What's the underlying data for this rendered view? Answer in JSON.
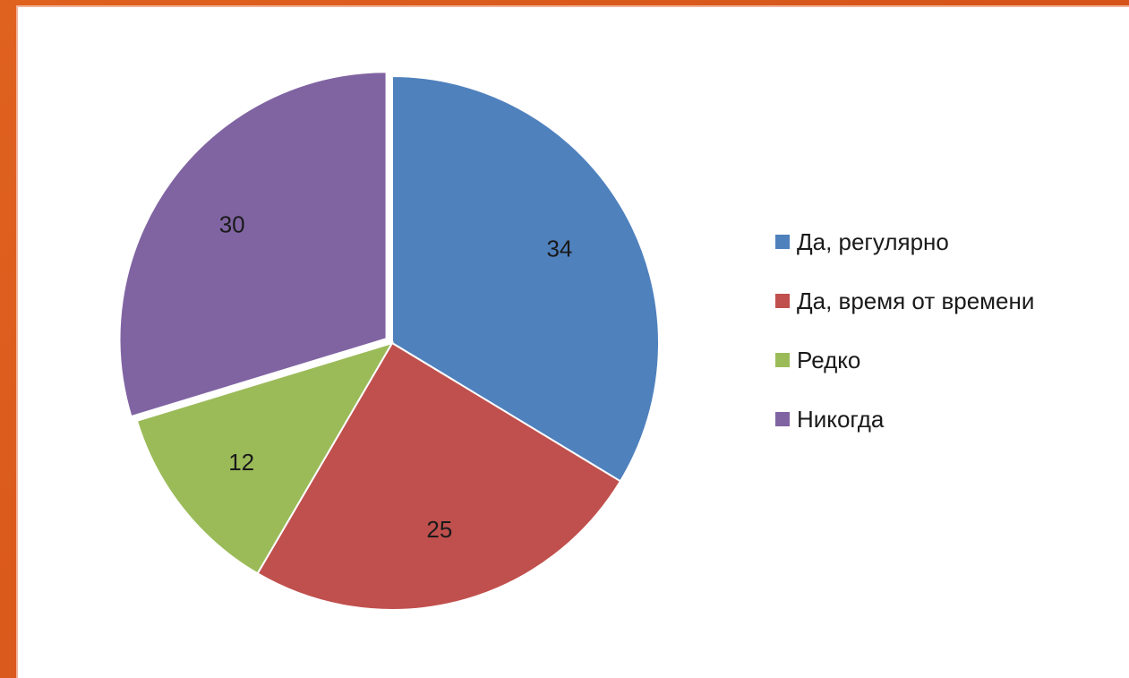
{
  "chart_data": {
    "type": "pie",
    "title": "",
    "categories": [
      "Да, регулярно",
      "Да, время от времени",
      "Редко",
      "Никогда"
    ],
    "values": [
      34,
      25,
      12,
      30
    ],
    "colors": [
      "#4f81bd",
      "#c0504d",
      "#9bbb59",
      "#8064a2"
    ],
    "labels": [
      "34",
      "25",
      "12",
      "30"
    ],
    "legend_position": "right",
    "exploded_slice": "Никогда"
  }
}
